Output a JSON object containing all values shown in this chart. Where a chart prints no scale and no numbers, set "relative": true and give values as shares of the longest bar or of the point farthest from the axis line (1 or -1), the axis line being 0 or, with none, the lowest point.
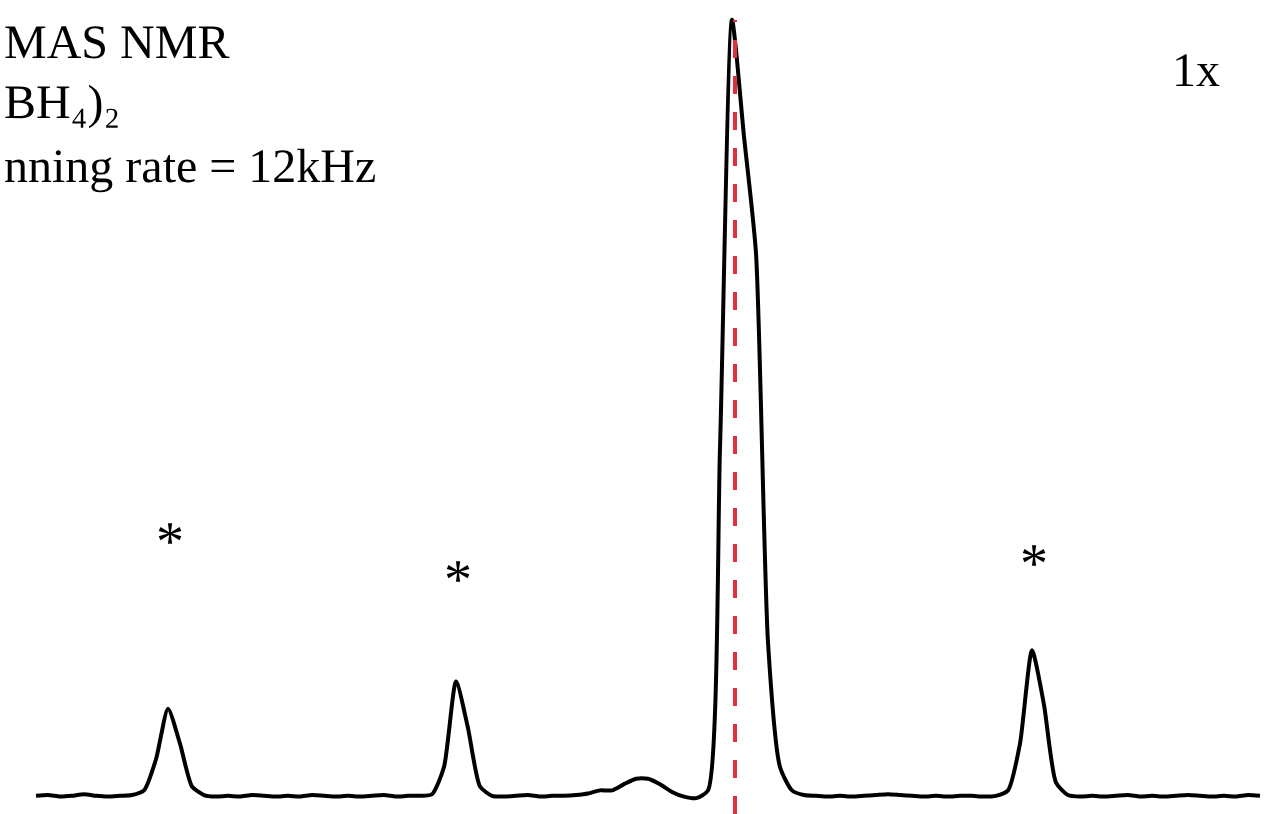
{
  "chart_data": {
    "type": "line",
    "relative": true,
    "tick_labels": false,
    "marker": "none",
    "line_style": "solid",
    "categories": [
      null,
      null,
      null,
      null,
      null,
      null,
      null,
      null,
      null,
      null,
      null,
      null,
      null,
      null,
      null,
      null,
      null,
      null,
      null,
      null,
      null,
      null,
      null,
      null,
      null,
      null,
      null,
      null,
      null,
      null,
      null,
      null,
      null,
      null,
      null,
      null,
      null,
      null,
      null,
      null,
      null,
      null,
      null,
      null,
      null,
      null,
      null,
      null,
      null,
      null,
      null,
      null,
      null,
      null,
      null,
      null,
      null,
      null,
      null,
      null,
      null,
      null,
      null,
      null,
      null,
      null,
      null,
      null,
      null,
      null,
      null,
      null,
      null,
      null,
      null,
      null,
      null,
      null,
      null,
      null,
      null,
      null,
      null,
      null,
      null,
      null,
      null,
      null,
      null,
      null,
      null,
      null,
      null,
      null,
      null,
      null,
      null,
      null,
      null,
      null,
      null,
      null,
      null
    ],
    "series": [
      {
        "color": "#000000",
        "values": [
          0.003,
          0.004,
          0.002,
          0.003,
          0.005,
          0.003,
          0.002,
          0.003,
          0.004,
          0.01,
          0.05,
          0.115,
          0.07,
          0.015,
          0.004,
          0.002,
          0.003,
          0.002,
          0.004,
          0.003,
          0.002,
          0.003,
          0.002,
          0.004,
          0.003,
          0.002,
          0.003,
          0.002,
          0.003,
          0.004,
          0.002,
          0.003,
          0.003,
          0.005,
          0.04,
          0.15,
          0.09,
          0.015,
          0.003,
          0.002,
          0.003,
          0.004,
          0.002,
          0.003,
          0.003,
          0.004,
          0.006,
          0.01,
          0.01,
          0.018,
          0.025,
          0.025,
          0.018,
          0.008,
          0.002,
          0.0,
          0.01,
          0.45,
          1.0,
          0.85,
          0.7,
          0.2,
          0.04,
          0.01,
          0.004,
          0.003,
          0.002,
          0.003,
          0.002,
          0.003,
          0.004,
          0.005,
          0.004,
          0.003,
          0.002,
          0.003,
          0.002,
          0.003,
          0.003,
          0.002,
          0.003,
          0.01,
          0.07,
          0.19,
          0.12,
          0.02,
          0.004,
          0.002,
          0.003,
          0.002,
          0.003,
          0.004,
          0.002,
          0.003,
          0.002,
          0.003,
          0.004,
          0.003,
          0.002,
          0.003,
          0.002,
          0.004,
          0.003
        ]
      }
    ],
    "annotations": [
      "MAS NMR",
      "BH₄)₂",
      "nning rate = 12kHz",
      "1x",
      "*",
      "*",
      "*"
    ]
  }
}
